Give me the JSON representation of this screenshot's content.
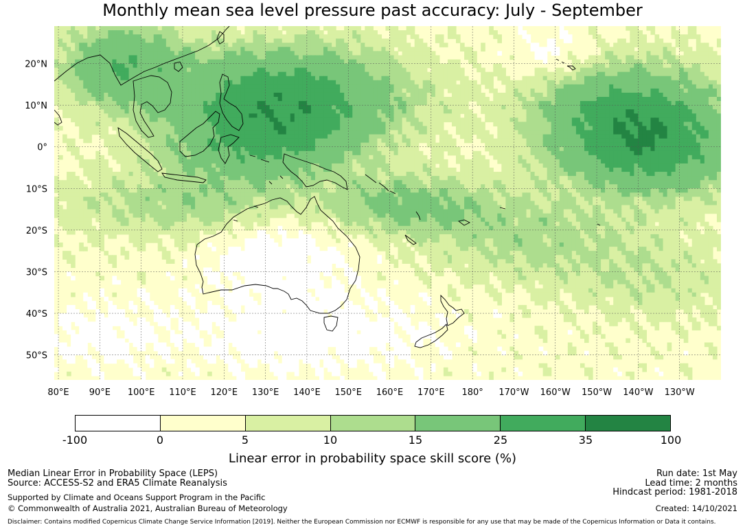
{
  "title": "Monthly mean sea level pressure past accuracy: July - September",
  "map": {
    "lon_labels": [
      "80°E",
      "90°E",
      "100°E",
      "110°E",
      "120°E",
      "130°E",
      "140°E",
      "150°E",
      "160°E",
      "170°E",
      "180°",
      "170°W",
      "160°W",
      "150°W",
      "140°W",
      "130°W"
    ],
    "lat_labels": [
      "20°N",
      "10°N",
      "0°",
      "10°S",
      "20°S",
      "30°S",
      "40°S",
      "50°S"
    ],
    "lon_range_east_deg": [
      79,
      240
    ],
    "lat_range_deg": [
      -56,
      29
    ],
    "gridlines": true,
    "field": "LEPS skill score (%)",
    "regions_by_category": [
      {
        "label": "North-west Pacific / Philippine Sea",
        "category": 5
      },
      {
        "label": "Maritime Continent (Indonesia, Borneo, New Guinea)",
        "category": 4
      },
      {
        "label": "Eastern tropical Pacific (near equator, 150°W–130°W)",
        "category": 5
      },
      {
        "label": "Western Pacific (north of New Zealand)",
        "category": 3
      },
      {
        "label": "Tropical Pacific south of equator",
        "category": 4
      },
      {
        "label": "Australian continent interior",
        "category": 0
      },
      {
        "label": "Southern Ocean south of Australia / Tasman Sea",
        "category": 0
      },
      {
        "label": "Southern Ocean south of New Zealand",
        "category": 1
      },
      {
        "label": "Eastern South Pacific (30°S, 130°W)",
        "category": 2
      }
    ]
  },
  "colorbar": {
    "boundaries": [
      "-100",
      "0",
      "5",
      "10",
      "15",
      "25",
      "35",
      "100"
    ],
    "colors": [
      "#ffffff",
      "#ffffcc",
      "#d9f0a3",
      "#addd8e",
      "#78c679",
      "#41ab5d",
      "#238443"
    ],
    "title": "Linear error in probability space skill score (%)"
  },
  "footer": {
    "left_line1": "Median Linear Error in Probability Space (LEPS)",
    "left_line2": "Source: ACCESS-S2 and ERA5 Climate Reanalysis",
    "left_line3": "Supported by Climate and Oceans Support Program in the Pacific",
    "left_line4": "© Commonwealth of Australia 2021, Australian Bureau of Meteorology",
    "right_line1": "Run date: 1st May",
    "right_line2": "Lead time: 2 months",
    "right_line3": "Hindcast period: 1981-2018",
    "right_line4": "Created: 14/10/2021",
    "disclaimer": "Disclaimer: Contains modified Copernicus Climate Change Service Information [2019]. Neither the European Commission nor ECMWF is responsible for any use that may be made of the Copernicus Information or Data it contains."
  }
}
